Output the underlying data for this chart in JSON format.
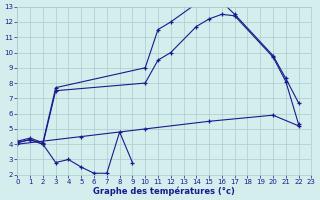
{
  "title": "Graphe des températures (°c)",
  "bg_color": "#d4eeee",
  "grid_color": "#a8cccc",
  "line_color": "#1a1a8c",
  "x_min": 0,
  "x_max": 23,
  "y_min": 2,
  "y_max": 13,
  "series_max_x": [
    0,
    1,
    2,
    3,
    10,
    11,
    12,
    14,
    15,
    16,
    17,
    20,
    21,
    22
  ],
  "series_max_y": [
    4.2,
    4.4,
    4.1,
    7.7,
    9.0,
    11.5,
    12.0,
    13.2,
    13.3,
    13.3,
    12.5,
    9.8,
    8.3,
    6.7
  ],
  "series_mid_x": [
    0,
    1,
    2,
    3,
    10,
    11,
    12,
    14,
    15,
    16,
    17,
    20,
    21,
    22
  ],
  "series_mid_y": [
    4.1,
    4.3,
    4.0,
    7.5,
    8.0,
    9.5,
    10.0,
    11.7,
    12.2,
    12.5,
    12.4,
    9.7,
    8.1,
    5.3
  ],
  "series_mean_x": [
    0,
    5,
    10,
    15,
    20,
    22
  ],
  "series_mean_y": [
    4.0,
    4.5,
    5.0,
    5.5,
    5.9,
    5.2
  ],
  "series_min_x": [
    0,
    1,
    2,
    3,
    4,
    5,
    6,
    7,
    8,
    9
  ],
  "series_min_y": [
    4.1,
    4.3,
    4.0,
    2.8,
    3.0,
    2.5,
    2.1,
    2.1,
    4.8,
    2.8
  ]
}
